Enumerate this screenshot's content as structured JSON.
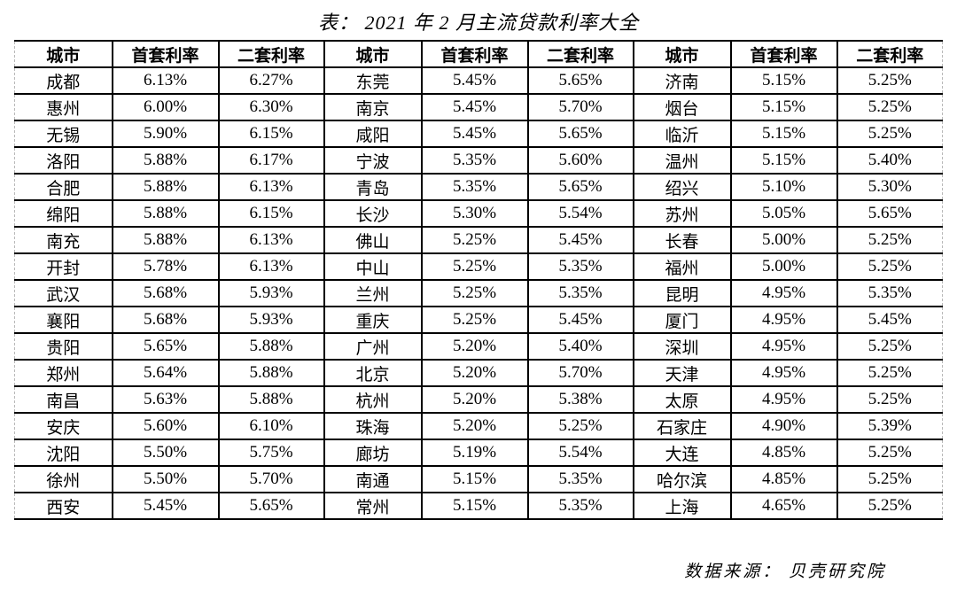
{
  "page_title": "表： 2021 年 2 月主流贷款利率大全",
  "source_note": "数据来源： 贝壳研究院",
  "colors": {
    "background": "#ffffff",
    "text": "#000000",
    "grid_border": "#000000",
    "outer_dashed_border": "#b8b8b8"
  },
  "chart_data": {
    "type": "table",
    "title": "表： 2021 年 2 月主流贷款利率大全",
    "source": "数据来源： 贝壳研究院",
    "columns": [
      "城市",
      "首套利率",
      "二套利率",
      "城市",
      "首套利率",
      "二套利率",
      "城市",
      "首套利率",
      "二套利率"
    ],
    "column_meaning": {
      "城市": "city",
      "首套利率": "first-home mortgage rate",
      "二套利率": "second-home mortgage rate"
    },
    "rows": [
      [
        "成都",
        "6.13%",
        "6.27%",
        "东莞",
        "5.45%",
        "5.65%",
        "济南",
        "5.15%",
        "5.25%"
      ],
      [
        "惠州",
        "6.00%",
        "6.30%",
        "南京",
        "5.45%",
        "5.70%",
        "烟台",
        "5.15%",
        "5.25%"
      ],
      [
        "无锡",
        "5.90%",
        "6.15%",
        "咸阳",
        "5.45%",
        "5.65%",
        "临沂",
        "5.15%",
        "5.25%"
      ],
      [
        "洛阳",
        "5.88%",
        "6.17%",
        "宁波",
        "5.35%",
        "5.60%",
        "温州",
        "5.15%",
        "5.40%"
      ],
      [
        "合肥",
        "5.88%",
        "6.13%",
        "青岛",
        "5.35%",
        "5.65%",
        "绍兴",
        "5.10%",
        "5.30%"
      ],
      [
        "绵阳",
        "5.88%",
        "6.15%",
        "长沙",
        "5.30%",
        "5.54%",
        "苏州",
        "5.05%",
        "5.65%"
      ],
      [
        "南充",
        "5.88%",
        "6.13%",
        "佛山",
        "5.25%",
        "5.45%",
        "长春",
        "5.00%",
        "5.25%"
      ],
      [
        "开封",
        "5.78%",
        "6.13%",
        "中山",
        "5.25%",
        "5.35%",
        "福州",
        "5.00%",
        "5.25%"
      ],
      [
        "武汉",
        "5.68%",
        "5.93%",
        "兰州",
        "5.25%",
        "5.35%",
        "昆明",
        "4.95%",
        "5.35%"
      ],
      [
        "襄阳",
        "5.68%",
        "5.93%",
        "重庆",
        "5.25%",
        "5.45%",
        "厦门",
        "4.95%",
        "5.45%"
      ],
      [
        "贵阳",
        "5.65%",
        "5.88%",
        "广州",
        "5.20%",
        "5.40%",
        "深圳",
        "4.95%",
        "5.25%"
      ],
      [
        "郑州",
        "5.64%",
        "5.88%",
        "北京",
        "5.20%",
        "5.70%",
        "天津",
        "4.95%",
        "5.25%"
      ],
      [
        "南昌",
        "5.63%",
        "5.88%",
        "杭州",
        "5.20%",
        "5.38%",
        "太原",
        "4.95%",
        "5.25%"
      ],
      [
        "安庆",
        "5.60%",
        "6.10%",
        "珠海",
        "5.20%",
        "5.25%",
        "石家庄",
        "4.90%",
        "5.39%"
      ],
      [
        "沈阳",
        "5.50%",
        "5.75%",
        "廊坊",
        "5.19%",
        "5.54%",
        "大连",
        "4.85%",
        "5.25%"
      ],
      [
        "徐州",
        "5.50%",
        "5.70%",
        "南通",
        "5.15%",
        "5.35%",
        "哈尔滨",
        "4.85%",
        "5.25%"
      ],
      [
        "西安",
        "5.45%",
        "5.65%",
        "常州",
        "5.15%",
        "5.35%",
        "上海",
        "4.65%",
        "5.25%"
      ]
    ]
  }
}
